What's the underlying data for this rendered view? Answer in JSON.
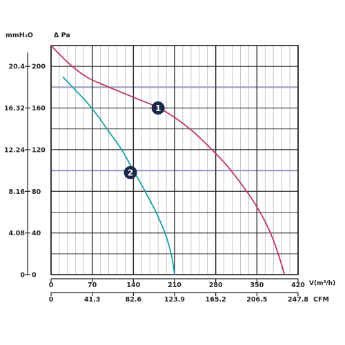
{
  "chart_data": {
    "type": "line",
    "y_units": {
      "left": "mmH₂O",
      "right": "Δ Pa"
    },
    "y_ticks": [
      {
        "mmh2o": "0",
        "pa": "0",
        "value": 0
      },
      {
        "mmh2o": "4.08",
        "pa": "40",
        "value": 40
      },
      {
        "mmh2o": "8.16",
        "pa": "80",
        "value": 80
      },
      {
        "mmh2o": "12.24",
        "pa": "120",
        "value": 120
      },
      {
        "mmh2o": "16.32",
        "pa": "160",
        "value": 160
      },
      {
        "mmh2o": "20.4",
        "pa": "200",
        "value": 200
      }
    ],
    "ylim": [
      0,
      220
    ],
    "x_unit": "V(m³/h)",
    "x_ticks": [
      "0",
      "70",
      "140",
      "210",
      "280",
      "350",
      "420"
    ],
    "xlim": [
      0,
      420
    ],
    "x2_unit": "CFM",
    "x2_ticks": [
      "0",
      "41.3",
      "82.6",
      "123.9",
      "165.2",
      "206.5",
      "247.8"
    ],
    "grid": true,
    "highlight_line_values": [
      180,
      100
    ],
    "series": [
      {
        "label": "1",
        "color": "#c1345e",
        "marker_at": [
          182,
          160
        ],
        "points": [
          [
            0,
            220
          ],
          [
            30,
            203
          ],
          [
            60,
            190
          ],
          [
            90,
            182
          ],
          [
            120,
            175
          ],
          [
            150,
            168
          ],
          [
            180,
            161
          ],
          [
            210,
            151
          ],
          [
            240,
            138
          ],
          [
            270,
            122
          ],
          [
            300,
            104
          ],
          [
            330,
            82
          ],
          [
            350,
            65
          ],
          [
            370,
            44
          ],
          [
            385,
            22
          ],
          [
            397,
            0
          ]
        ]
      },
      {
        "label": "2",
        "color": "#1a9fa8",
        "marker_at": [
          135,
          98
        ],
        "points": [
          [
            20,
            190
          ],
          [
            40,
            178
          ],
          [
            60,
            166
          ],
          [
            80,
            152
          ],
          [
            100,
            136
          ],
          [
            120,
            120
          ],
          [
            140,
            100
          ],
          [
            160,
            80
          ],
          [
            180,
            58
          ],
          [
            195,
            38
          ],
          [
            205,
            18
          ],
          [
            210,
            0
          ]
        ]
      }
    ]
  }
}
